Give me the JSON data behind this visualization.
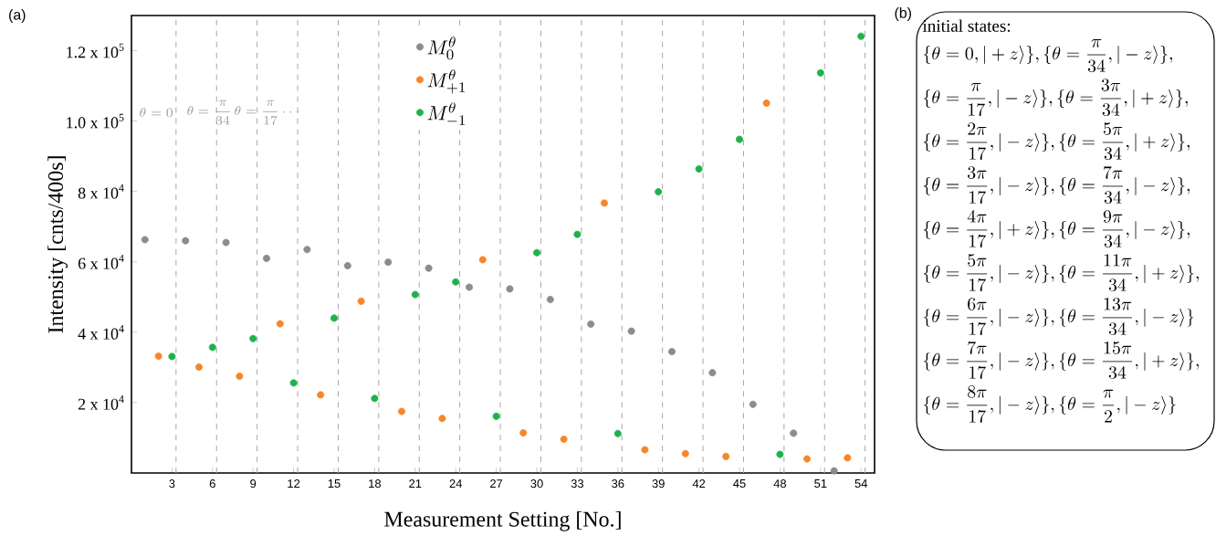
{
  "chart_data": [
    {
      "type": "scatter",
      "xlabel": "Measurement Setting [No.]",
      "ylabel": "Intensity [cnts/400s]",
      "xlim": [
        0,
        55
      ],
      "ylim": [
        0,
        130000
      ],
      "xticks": [
        3,
        6,
        9,
        12,
        15,
        18,
        21,
        24,
        27,
        30,
        33,
        36,
        39,
        42,
        45,
        48,
        51,
        54
      ],
      "yticks": [
        {
          "value": 20000,
          "label": "2 x 10$^{4}$"
        },
        {
          "value": 40000,
          "label": "4 x 10$^{4}$"
        },
        {
          "value": 60000,
          "label": "6 x 10$^{4}$"
        },
        {
          "value": 80000,
          "label": "8 x 10$^{4}$"
        },
        {
          "value": 100000,
          "label": "1.0 x 10$^{5}$"
        },
        {
          "value": 120000,
          "label": "1.2 x 10$^{5}$"
        }
      ],
      "marker": "circle",
      "legend": "top",
      "grid": false,
      "series": [
        {
          "name": "M_0^{\\theta}",
          "color": "#8c8c8c",
          "x": [
            1,
            4,
            7,
            10,
            13,
            16,
            19,
            22,
            25,
            28,
            31,
            34,
            37,
            40,
            43,
            46,
            49,
            52
          ],
          "values": [
            66300,
            66000,
            65500,
            61000,
            63500,
            58900,
            59900,
            58200,
            52800,
            52300,
            49300,
            42300,
            40300,
            34500,
            28500,
            19500,
            11300,
            600
          ]
        },
        {
          "name": "M_{+1}^{\\theta}",
          "color": "#f7862a",
          "x": [
            2,
            5,
            8,
            11,
            14,
            17,
            20,
            23,
            26,
            29,
            32,
            35,
            38,
            41,
            44,
            47,
            50,
            53
          ],
          "values": [
            33200,
            30100,
            27500,
            42400,
            22200,
            48800,
            17500,
            15500,
            60600,
            11400,
            9600,
            76700,
            6600,
            5500,
            4700,
            105100,
            4000,
            4300
          ]
        },
        {
          "name": "M_{-1}^{\\theta}",
          "color": "#1fb24a",
          "x": [
            3,
            6,
            9,
            12,
            15,
            18,
            21,
            24,
            27,
            30,
            33,
            36,
            39,
            42,
            45,
            48,
            51,
            54
          ],
          "values": [
            33100,
            35700,
            38200,
            25600,
            44000,
            21200,
            50700,
            54300,
            16100,
            62600,
            67800,
            11200,
            79900,
            86400,
            94800,
            5300,
            113700,
            124100
          ]
        }
      ],
      "ref_lines": [
        {
          "axis": "x",
          "value": 3.3,
          "color": "#a6a6a6",
          "line_style": "dashed"
        },
        {
          "axis": "x",
          "value": 6.3,
          "color": "#a6a6a6",
          "line_style": "dashed"
        },
        {
          "axis": "x",
          "value": 9.3,
          "color": "#a6a6a6",
          "line_style": "dashed"
        },
        {
          "axis": "x",
          "value": 12.3,
          "color": "#a6a6a6",
          "line_style": "dashed"
        },
        {
          "axis": "x",
          "value": 15.3,
          "color": "#a6a6a6",
          "line_style": "dashed"
        },
        {
          "axis": "x",
          "value": 18.3,
          "color": "#a6a6a6",
          "line_style": "dashed"
        },
        {
          "axis": "x",
          "value": 21.3,
          "color": "#a6a6a6",
          "line_style": "dashed"
        },
        {
          "axis": "x",
          "value": 24.3,
          "color": "#a6a6a6",
          "line_style": "dashed"
        },
        {
          "axis": "x",
          "value": 27.3,
          "color": "#a6a6a6",
          "line_style": "dashed"
        },
        {
          "axis": "x",
          "value": 30.3,
          "color": "#a6a6a6",
          "line_style": "dashed"
        },
        {
          "axis": "x",
          "value": 33.3,
          "color": "#a6a6a6",
          "line_style": "dashed"
        },
        {
          "axis": "x",
          "value": 36.3,
          "color": "#a6a6a6",
          "line_style": "dashed"
        },
        {
          "axis": "x",
          "value": 39.3,
          "color": "#a6a6a6",
          "line_style": "dashed"
        },
        {
          "axis": "x",
          "value": 42.3,
          "color": "#a6a6a6",
          "line_style": "dashed"
        },
        {
          "axis": "x",
          "value": 45.3,
          "color": "#a6a6a6",
          "line_style": "dashed"
        },
        {
          "axis": "x",
          "value": 48.3,
          "color": "#a6a6a6",
          "line_style": "dashed"
        },
        {
          "axis": "x",
          "value": 51.3,
          "color": "#a6a6a6",
          "line_style": "dashed"
        },
        {
          "axis": "x",
          "value": 54.3,
          "color": "#a6a6a6",
          "line_style": "dashed"
        }
      ],
      "annotations": [
        "(a)",
        "\\theta=0",
        "\\theta=\\frac{\\pi}{34}",
        "\\theta=\\frac{\\pi}{17}",
        "\\cdots"
      ]
    },
    {
      "type": "other",
      "title": "initial states:",
      "annotations": [
        "(b)",
        "\\{\\theta=0,|+z\\rangle\\},\\{\\theta=\\frac{\\pi}{34},|-z\\rangle\\},",
        "\\{\\theta=\\frac{\\pi}{17},|-z\\rangle\\},\\{\\theta=\\frac{3\\pi}{34},|+z\\rangle\\},",
        "\\{\\theta=\\frac{2\\pi}{17},|-z\\rangle\\},\\{\\theta=\\frac{5\\pi}{34},|+z\\rangle\\},",
        "\\{\\theta=\\frac{3\\pi}{17},|-z\\rangle\\},\\{\\theta=\\frac{7\\pi}{34},|-z\\rangle\\},",
        "\\{\\theta=\\frac{4\\pi}{17},|+z\\rangle\\},\\{\\theta=\\frac{9\\pi}{34},|-z\\rangle\\},",
        "\\{\\theta=\\frac{5\\pi}{17},|-z\\rangle\\},\\{\\theta=\\frac{11\\pi}{34},|+z\\rangle\\},",
        "\\{\\theta=\\frac{6\\pi}{17},|-z\\rangle\\},\\{\\theta=\\frac{13\\pi}{34},|-z\\rangle\\}",
        "\\{\\theta=\\frac{7\\pi}{17},|-z\\rangle\\},\\{\\theta=\\frac{15\\pi}{34},|+z\\rangle\\},",
        "\\{\\theta=\\frac{8\\pi}{17},|-z\\rangle\\},\\{\\theta=\\frac{\\pi}{2},|-z\\rangle\\}"
      ]
    }
  ]
}
